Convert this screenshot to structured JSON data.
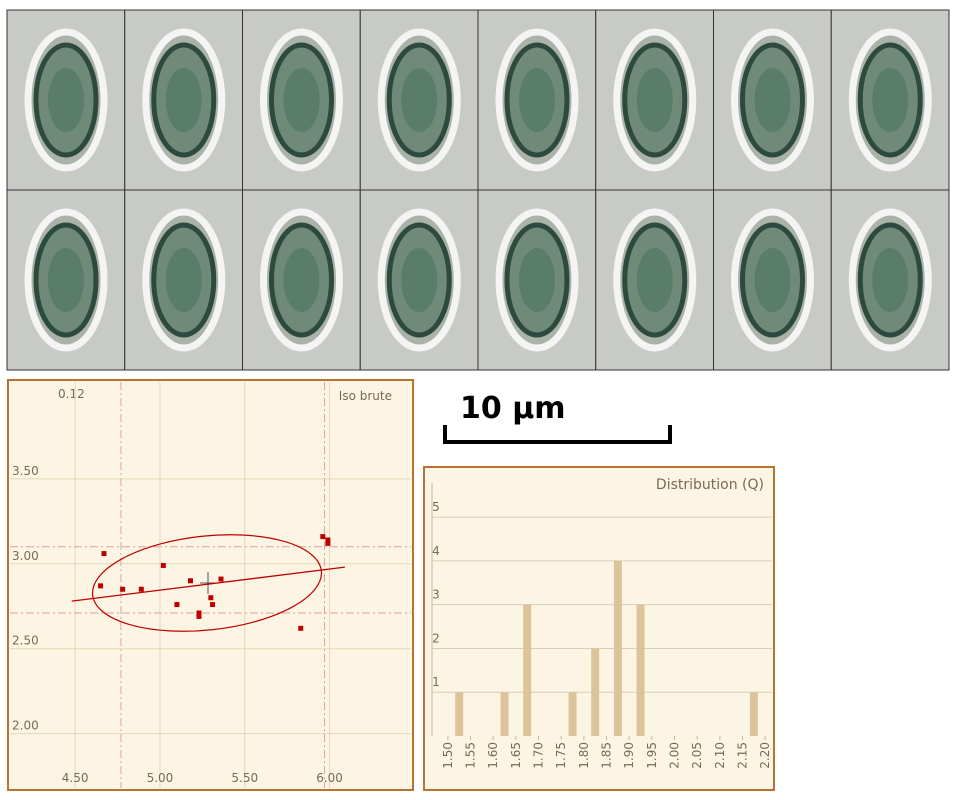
{
  "chart_data": [
    {
      "type": "scatter",
      "corner_label": "0.12",
      "label": "Iso brute",
      "color": "#c00000",
      "x": [
        4.67,
        4.65,
        4.78,
        4.89,
        5.02,
        5.1,
        5.18,
        5.23,
        5.23,
        5.3,
        5.31,
        5.36,
        5.83,
        5.96,
        5.99,
        5.99
      ],
      "y": [
        3.06,
        2.87,
        2.85,
        2.85,
        2.99,
        2.76,
        2.9,
        2.71,
        2.69,
        2.8,
        2.76,
        2.91,
        2.62,
        3.16,
        3.14,
        3.12
      ],
      "xlim": [
        4.116,
        6.48
      ],
      "ylim": [
        1.68,
        4.07
      ],
      "xticks": [
        {
          "value": 4.5,
          "label": "4.50"
        },
        {
          "value": 5,
          "label": "5.00"
        },
        {
          "value": 5.5,
          "label": "5.50"
        },
        {
          "value": 6,
          "label": "6.00"
        }
      ],
      "yticks": [
        {
          "value": 2,
          "label": "2.00"
        },
        {
          "value": 2.5,
          "label": "2.50"
        },
        {
          "value": 3,
          "label": "3.00"
        },
        {
          "value": 3.5,
          "label": "3.50"
        }
      ],
      "grid": true,
      "vlines": [
        4.77,
        5.97
      ],
      "hlines": [
        3.1,
        2.71
      ],
      "trend_line": {
        "x": [
          4.48,
          6.09
        ],
        "y": [
          2.78,
          2.98
        ]
      }
    },
    {
      "type": "histogram",
      "title": "Distribution (Q)",
      "color": "#dcc39a",
      "bins": [
        {
          "value": 1.5,
          "label": "1.50"
        },
        {
          "value": 1.55,
          "label": "1.55"
        },
        {
          "value": 1.6,
          "label": "1.60"
        },
        {
          "value": 1.65,
          "label": "1.65"
        },
        {
          "value": 1.7,
          "label": "1.70"
        },
        {
          "value": 1.75,
          "label": "1.75"
        },
        {
          "value": 1.8,
          "label": "1.80"
        },
        {
          "value": 1.85,
          "label": "1.85"
        },
        {
          "value": 1.9,
          "label": "1.90"
        },
        {
          "value": 1.95,
          "label": "1.95"
        },
        {
          "value": 2,
          "label": "2.00"
        },
        {
          "value": 2.05,
          "label": "2.05"
        },
        {
          "value": 2.1,
          "label": "2.10"
        },
        {
          "value": 2.15,
          "label": "2.15"
        },
        {
          "value": 2.2,
          "label": "2.20"
        }
      ],
      "values": [
        1,
        0,
        1,
        3,
        0,
        1,
        2,
        4,
        3,
        0,
        0,
        0,
        0,
        1
      ],
      "xlim": [
        1.465,
        2.215
      ],
      "ylim": [
        0,
        5.78
      ],
      "yticks": [
        1,
        2,
        3,
        4,
        5
      ],
      "grid": true
    }
  ],
  "scale_bar": {
    "label": "10 µm"
  }
}
